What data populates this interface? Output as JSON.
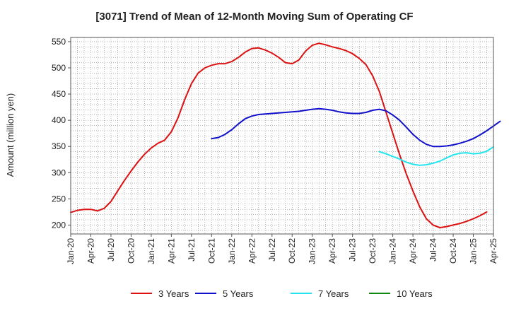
{
  "chart_data": {
    "type": "line",
    "title": "[3071]  Trend of Mean of 12-Month Moving Sum of Operating CF",
    "xlabel": "",
    "ylabel": "Amount (million yen)",
    "ylim": [
      183,
      558
    ],
    "yticks": [
      200,
      250,
      300,
      350,
      400,
      450,
      500,
      550
    ],
    "x_tick_labels": [
      "Jan-20",
      "Apr-20",
      "Jul-20",
      "Oct-20",
      "Jan-21",
      "Apr-21",
      "Jul-21",
      "Oct-21",
      "Jan-22",
      "Apr-22",
      "Jul-22",
      "Oct-22",
      "Jan-23",
      "Apr-23",
      "Jul-23",
      "Oct-23",
      "Jan-24",
      "Apr-24",
      "Jul-24",
      "Oct-24",
      "Jan-25",
      "Apr-25"
    ],
    "x_unit": "months since Jan-20",
    "xlim": [
      0,
      63
    ],
    "grid": true,
    "legend_position": "bottom",
    "series": [
      {
        "name": "3 Years",
        "color": "#dd1111",
        "x_start": 0,
        "values": [
          224,
          228,
          230,
          230,
          227,
          232,
          245,
          265,
          285,
          303,
          320,
          335,
          347,
          356,
          362,
          378,
          405,
          440,
          470,
          490,
          500,
          505,
          508,
          508,
          512,
          520,
          530,
          537,
          538,
          534,
          528,
          520,
          510,
          508,
          515,
          532,
          543,
          547,
          544,
          540,
          537,
          533,
          527,
          518,
          506,
          485,
          455,
          415,
          375,
          335,
          298,
          265,
          235,
          212,
          200,
          195,
          197,
          200,
          203,
          207,
          212,
          218,
          225
        ],
        "colour_label": "red"
      },
      {
        "name": "5 Years",
        "color": "#1111cc",
        "x_start": 21,
        "values": [
          365,
          367,
          373,
          382,
          393,
          403,
          408,
          411,
          412,
          413,
          414,
          415,
          416,
          417,
          419,
          421,
          422,
          421,
          419,
          416,
          414,
          413,
          413,
          415,
          419,
          421,
          418,
          410,
          400,
          387,
          373,
          362,
          354,
          350,
          350,
          351,
          353,
          356,
          360,
          365,
          372,
          380,
          389,
          398
        ],
        "colour_label": "blue"
      },
      {
        "name": "7 Years",
        "color": "#22e5ee",
        "x_start": 46,
        "values": [
          340,
          336,
          331,
          326,
          320,
          316,
          314,
          315,
          318,
          322,
          328,
          334,
          337,
          338,
          336,
          337,
          341,
          349
        ],
        "colour_label": "cyan"
      },
      {
        "name": "10 Years",
        "color": "#118811",
        "x_start": 0,
        "values": [],
        "colour_label": "green"
      }
    ]
  }
}
